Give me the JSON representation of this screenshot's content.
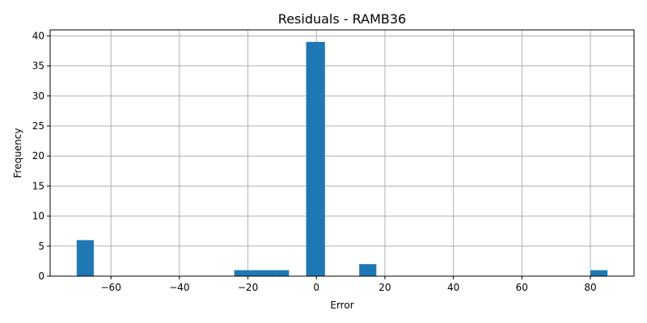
{
  "chart_data": {
    "type": "bar",
    "title": "Residuals - RAMB36",
    "xlabel": "Error",
    "ylabel": "Frequency",
    "xlim": [
      -77.75,
      92.75
    ],
    "ylim": [
      0,
      41
    ],
    "xticks": [
      -60,
      -40,
      -20,
      0,
      20,
      40,
      60,
      80
    ],
    "xtick_labels": [
      "−60",
      "−40",
      "−20",
      "0",
      "20",
      "40",
      "60",
      "80"
    ],
    "yticks": [
      0,
      5,
      10,
      15,
      20,
      25,
      30,
      35,
      40
    ],
    "ytick_labels": [
      "0",
      "5",
      "10",
      "15",
      "20",
      "25",
      "30",
      "35",
      "40"
    ],
    "grid": true,
    "bar_color": "#1f77b4",
    "bins": [
      {
        "x0": -70,
        "x1": -65,
        "count": 6
      },
      {
        "x0": -24,
        "x1": -20,
        "count": 1
      },
      {
        "x0": -20,
        "x1": -16,
        "count": 1
      },
      {
        "x0": -16,
        "x1": -12,
        "count": 1
      },
      {
        "x0": -12,
        "x1": -8,
        "count": 1
      },
      {
        "x0": -3,
        "x1": 2.5,
        "count": 39
      },
      {
        "x0": 12.5,
        "x1": 17.5,
        "count": 2
      },
      {
        "x0": 80,
        "x1": 85,
        "count": 1
      }
    ]
  }
}
